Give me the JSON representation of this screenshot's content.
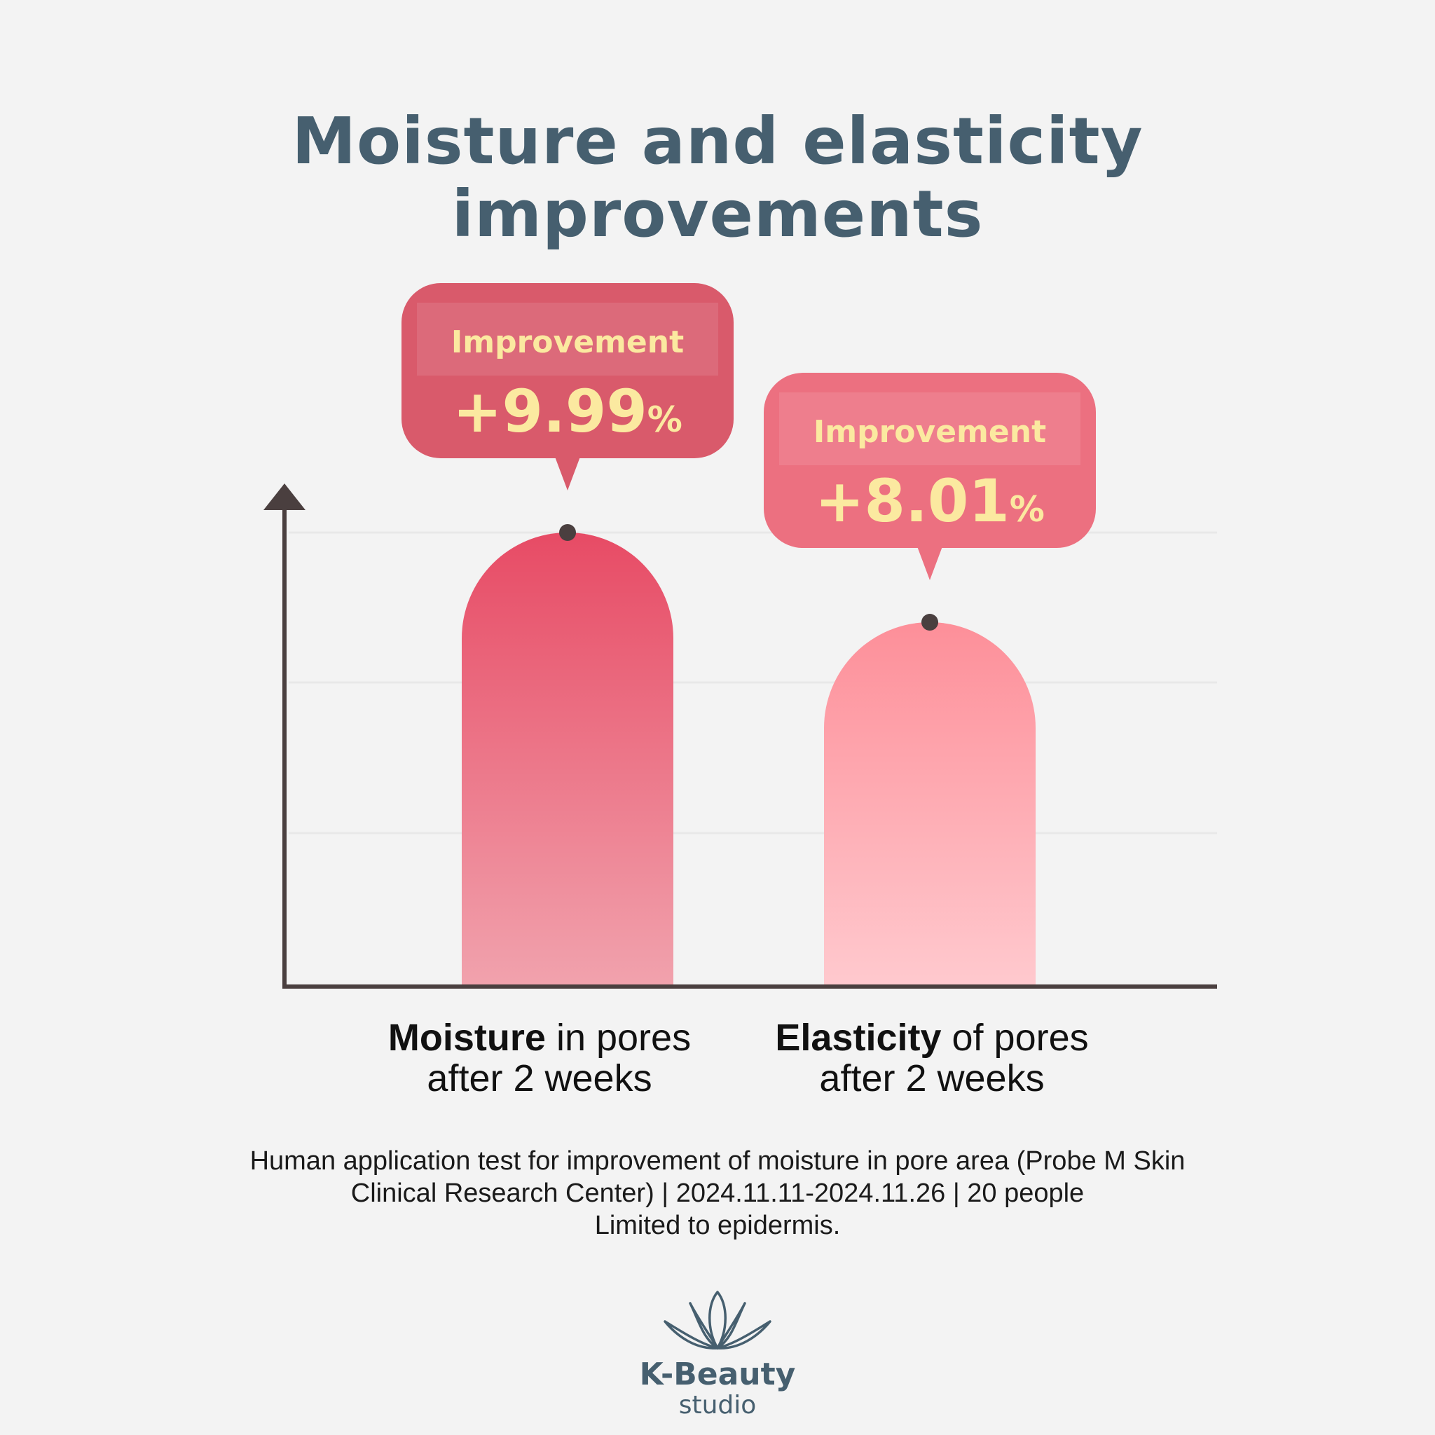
{
  "title": {
    "line1": "Moisture and elasticity",
    "line2": "improvements"
  },
  "chart_data": {
    "type": "bar",
    "categories": [
      "Moisture in pores after 2 weeks",
      "Elasticity of pores after 2 weeks"
    ],
    "values": [
      9.99,
      8.01
    ],
    "unit": "%",
    "bars": [
      {
        "bold": "Moisture",
        "rest": " in pores",
        "line2": "after 2 weeks",
        "callout_label": "Improvement",
        "callout_value": "+9.99",
        "callout_unit": "%",
        "color_top": "#e74b65",
        "color_bottom": "#f1a2ad",
        "callout_color": "#d95a6b"
      },
      {
        "bold": "Elasticity",
        "rest": " of pores",
        "line2": "after 2 weeks",
        "callout_label": "Improvement",
        "callout_value": "+8.01",
        "callout_unit": "%",
        "color_top": "#fd8f99",
        "color_bottom": "#ffc9ce",
        "callout_color": "#ec7080"
      }
    ],
    "grid": true,
    "callout_text_color": "#fbe9a0"
  },
  "footnote": {
    "line1": "Human application test for improvement of moisture in pore area (Probe M Skin",
    "line2": "Clinical Research Center) | 2024.11.11-2024.11.26 | 20 people",
    "line3": "Limited to epidermis."
  },
  "logo": {
    "brand": "K-Beauty",
    "sub": "studio",
    "icon": "lotus-icon"
  }
}
